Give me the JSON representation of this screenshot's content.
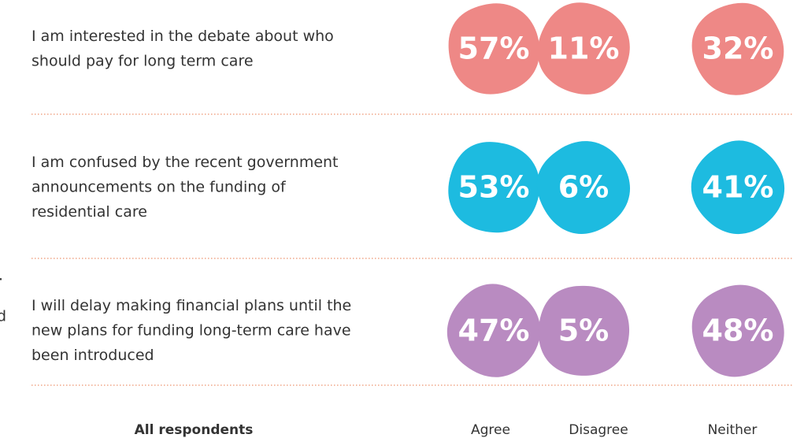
{
  "chart_data": {
    "type": "blob-grid",
    "categories": [
      [
        "I am interested in the debate about who",
        "should pay for long term care"
      ],
      [
        "I am confused by the recent government",
        "announcements on the funding of",
        "residential care"
      ],
      [
        "I will delay making financial plans until the",
        "new plans for funding long-term care have",
        "been introduced"
      ]
    ],
    "colors": [
      "#ee8886",
      "#1dbbe0",
      "#b98bc1"
    ],
    "series": [
      {
        "name": "Agree",
        "values": [
          57,
          53,
          47
        ],
        "value_labels": [
          "57%",
          "53%",
          "47%"
        ]
      },
      {
        "name": "Disagree",
        "values": [
          11,
          6,
          5
        ],
        "value_labels": [
          "11%",
          "6%",
          "5%"
        ]
      },
      {
        "name": "Neither",
        "values": [
          32,
          41,
          48
        ],
        "value_labels": [
          "32%",
          "41%",
          "48%"
        ]
      }
    ],
    "footer_label": "All respondents",
    "annotations": [
      ".",
      "d"
    ]
  }
}
